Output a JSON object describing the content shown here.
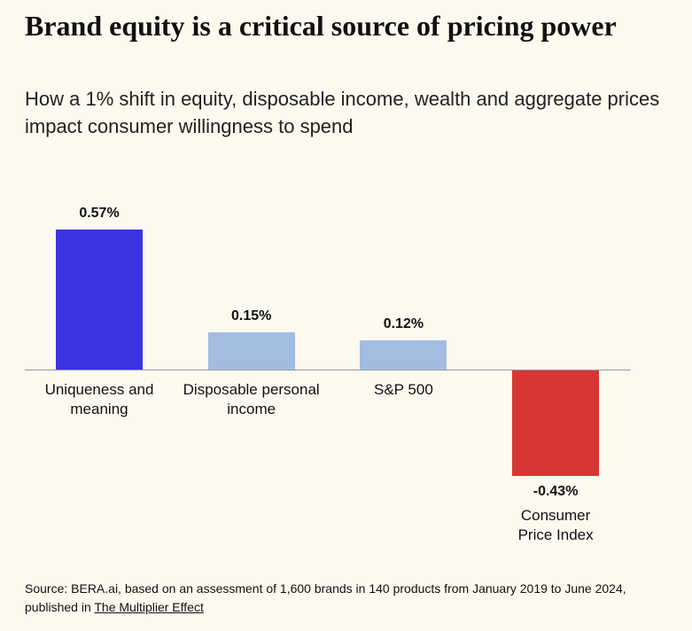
{
  "chart_data": {
    "type": "bar",
    "title": "Brand equity is a critical source of pricing power",
    "subtitle": "How a 1% shift in equity, disposable income, wealth and aggregate prices impact consumer willingness to spend",
    "categories": [
      "Uniqueness and meaning",
      "Disposable personal income",
      "S&P 500",
      "Consumer Price Index"
    ],
    "values": [
      0.57,
      0.15,
      0.12,
      -0.43
    ],
    "value_labels": [
      "0.57%",
      "0.15%",
      "0.12%",
      "-0.43%"
    ],
    "colors": [
      "#3a35e0",
      "#a3bde0",
      "#a3bde0",
      "#d63636"
    ],
    "source": "Source: BERA.ai, based on an assessment of 1,600 brands in 140 products from January 2019 to June 2024, published in",
    "source_link": "The Multiplier Effect"
  }
}
